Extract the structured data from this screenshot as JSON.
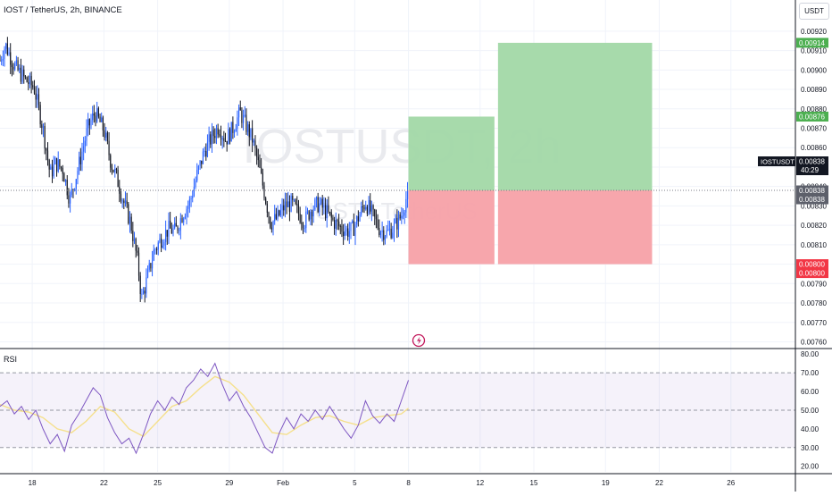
{
  "header": {
    "title": "IOST / TetherUS, 2h, BINANCE"
  },
  "currency_button": {
    "label": "USDT"
  },
  "colors": {
    "up": "#2962ff",
    "down": "#131722",
    "profit": "#a2d8a6",
    "loss": "#f7a1a8",
    "rsi": "#7e57c2",
    "rsi_ma": "#f5e08c",
    "profit_tag": "#4caf50",
    "loss_tag": "#f23645"
  },
  "chart_data": [
    {
      "type": "candlestick",
      "title": "IOST / TetherUS, 2h, BINANCE",
      "watermark": {
        "symbol": "IOSTUSDT, 2h",
        "name": "IOST / TetherUS"
      },
      "ylim": [
        0.00757,
        0.00925
      ],
      "y_ticks": [
        "0.00920",
        "0.00910",
        "0.00900",
        "0.00890",
        "0.00880",
        "0.00870",
        "0.00860",
        "0.00850",
        "0.00840",
        "0.00830",
        "0.00820",
        "0.00810",
        "0.00800",
        "0.00790",
        "0.00780",
        "0.00770",
        "0.00760"
      ],
      "x_ticks": [
        "18",
        "22",
        "25",
        "29",
        "Feb",
        "5",
        "8",
        "12",
        "15",
        "19",
        "22",
        "26"
      ],
      "x_tick_days": [
        18,
        22,
        25,
        29,
        32,
        36,
        39,
        43,
        46,
        50,
        53,
        57
      ],
      "x_range_days": [
        16.2,
        60.6
      ],
      "last_price": 0.00838,
      "price_tags": [
        {
          "value": "0.00914",
          "kind": "profit"
        },
        {
          "value": "0.00876",
          "kind": "profit"
        },
        {
          "value": "0.00838",
          "kind": "gray"
        },
        {
          "value": "0.00838",
          "kind": "gray"
        },
        {
          "value": "0.00800",
          "kind": "loss"
        },
        {
          "value": "0.00800",
          "kind": "loss"
        }
      ],
      "symbol_tag": {
        "name": "IOSTUSDT",
        "price": "0.00838",
        "countdown": "40:29"
      },
      "positions": [
        {
          "start_day": 39.0,
          "end_day": 43.8,
          "entry": 0.00838,
          "target": 0.00876,
          "stop": 0.008
        },
        {
          "start_day": 44.0,
          "end_day": 52.6,
          "entry": 0.00838,
          "target": 0.00914,
          "stop": 0.008
        }
      ],
      "price_path": [
        [
          16.2,
          0.00905
        ],
        [
          16.5,
          0.00913
        ],
        [
          17.0,
          0.00902
        ],
        [
          17.6,
          0.00895
        ],
        [
          18.1,
          0.00891
        ],
        [
          18.6,
          0.0087
        ],
        [
          19.0,
          0.00846
        ],
        [
          19.3,
          0.00852
        ],
        [
          19.7,
          0.00849
        ],
        [
          20.1,
          0.00833
        ],
        [
          20.6,
          0.00851
        ],
        [
          21.1,
          0.0087
        ],
        [
          21.5,
          0.00878
        ],
        [
          22.0,
          0.00869
        ],
        [
          22.4,
          0.00852
        ],
        [
          22.7,
          0.00845
        ],
        [
          23.1,
          0.00832
        ],
        [
          23.5,
          0.00821
        ],
        [
          23.9,
          0.008
        ],
        [
          24.1,
          0.00782
        ],
        [
          24.4,
          0.00792
        ],
        [
          24.8,
          0.00807
        ],
        [
          25.2,
          0.00813
        ],
        [
          25.6,
          0.00818
        ],
        [
          26.0,
          0.00817
        ],
        [
          26.4,
          0.00826
        ],
        [
          26.8,
          0.00832
        ],
        [
          27.2,
          0.00846
        ],
        [
          27.6,
          0.00858
        ],
        [
          28.0,
          0.00865
        ],
        [
          28.4,
          0.00871
        ],
        [
          28.8,
          0.00864
        ],
        [
          29.2,
          0.0087
        ],
        [
          29.6,
          0.00878
        ],
        [
          29.9,
          0.00872
        ],
        [
          30.3,
          0.00864
        ],
        [
          30.7,
          0.00848
        ],
        [
          31.0,
          0.00835
        ],
        [
          31.3,
          0.00821
        ],
        [
          31.7,
          0.00824
        ],
        [
          32.1,
          0.0083
        ],
        [
          32.5,
          0.00831
        ],
        [
          32.8,
          0.00827
        ],
        [
          33.2,
          0.00822
        ],
        [
          33.6,
          0.00829
        ],
        [
          34.0,
          0.00831
        ],
        [
          34.4,
          0.00827
        ],
        [
          34.8,
          0.00822
        ],
        [
          35.2,
          0.00819
        ],
        [
          35.6,
          0.00817
        ],
        [
          35.9,
          0.00818
        ],
        [
          36.3,
          0.00826
        ],
        [
          36.6,
          0.00832
        ],
        [
          37.0,
          0.00825
        ],
        [
          37.4,
          0.00818
        ],
        [
          37.8,
          0.00816
        ],
        [
          38.2,
          0.00819
        ],
        [
          38.6,
          0.00825
        ],
        [
          39.0,
          0.00838
        ]
      ]
    },
    {
      "type": "line",
      "title": "RSI",
      "ylim": [
        17,
        82
      ],
      "y_ticks": [
        "80.00",
        "70.00",
        "60.00",
        "50.00",
        "40.00",
        "30.00",
        "20.00"
      ],
      "levels": [
        70,
        50,
        30
      ],
      "series": [
        {
          "name": "RSI",
          "points": [
            [
              16.2,
              52
            ],
            [
              16.6,
              55
            ],
            [
              17.0,
              48
            ],
            [
              17.4,
              52
            ],
            [
              17.8,
              45
            ],
            [
              18.2,
              50
            ],
            [
              18.6,
              40
            ],
            [
              19.0,
              32
            ],
            [
              19.4,
              37
            ],
            [
              19.8,
              28
            ],
            [
              20.2,
              42
            ],
            [
              20.6,
              48
            ],
            [
              21.0,
              55
            ],
            [
              21.4,
              62
            ],
            [
              21.8,
              58
            ],
            [
              22.2,
              46
            ],
            [
              22.6,
              38
            ],
            [
              23.0,
              32
            ],
            [
              23.4,
              35
            ],
            [
              23.8,
              27
            ],
            [
              24.2,
              37
            ],
            [
              24.6,
              48
            ],
            [
              25.0,
              55
            ],
            [
              25.4,
              50
            ],
            [
              25.8,
              57
            ],
            [
              26.2,
              53
            ],
            [
              26.6,
              62
            ],
            [
              27.0,
              66
            ],
            [
              27.4,
              72
            ],
            [
              27.8,
              68
            ],
            [
              28.2,
              75
            ],
            [
              28.6,
              64
            ],
            [
              29.0,
              55
            ],
            [
              29.4,
              60
            ],
            [
              29.8,
              52
            ],
            [
              30.2,
              46
            ],
            [
              30.6,
              38
            ],
            [
              31.0,
              30
            ],
            [
              31.4,
              27
            ],
            [
              31.8,
              38
            ],
            [
              32.2,
              46
            ],
            [
              32.6,
              40
            ],
            [
              33.0,
              48
            ],
            [
              33.4,
              44
            ],
            [
              33.8,
              50
            ],
            [
              34.2,
              45
            ],
            [
              34.6,
              52
            ],
            [
              35.0,
              46
            ],
            [
              35.4,
              40
            ],
            [
              35.8,
              35
            ],
            [
              36.2,
              42
            ],
            [
              36.6,
              55
            ],
            [
              37.0,
              47
            ],
            [
              37.4,
              43
            ],
            [
              37.8,
              48
            ],
            [
              38.2,
              44
            ],
            [
              38.6,
              55
            ],
            [
              39.0,
              66
            ]
          ]
        },
        {
          "name": "RSI-based MA",
          "points": [
            [
              16.2,
              53
            ],
            [
              17.0,
              50
            ],
            [
              17.8,
              49
            ],
            [
              18.6,
              46
            ],
            [
              19.4,
              40
            ],
            [
              20.2,
              38
            ],
            [
              21.0,
              44
            ],
            [
              21.8,
              52
            ],
            [
              22.6,
              49
            ],
            [
              23.4,
              40
            ],
            [
              24.2,
              36
            ],
            [
              25.0,
              44
            ],
            [
              25.8,
              52
            ],
            [
              26.6,
              55
            ],
            [
              27.4,
              62
            ],
            [
              28.2,
              68
            ],
            [
              29.0,
              65
            ],
            [
              29.8,
              58
            ],
            [
              30.6,
              48
            ],
            [
              31.4,
              38
            ],
            [
              32.2,
              37
            ],
            [
              33.0,
              42
            ],
            [
              33.8,
              46
            ],
            [
              34.6,
              47
            ],
            [
              35.4,
              44
            ],
            [
              36.2,
              42
            ],
            [
              37.0,
              46
            ],
            [
              37.8,
              47
            ],
            [
              38.6,
              48
            ],
            [
              39.0,
              51
            ]
          ]
        }
      ]
    }
  ],
  "rsi_label": "RSI"
}
